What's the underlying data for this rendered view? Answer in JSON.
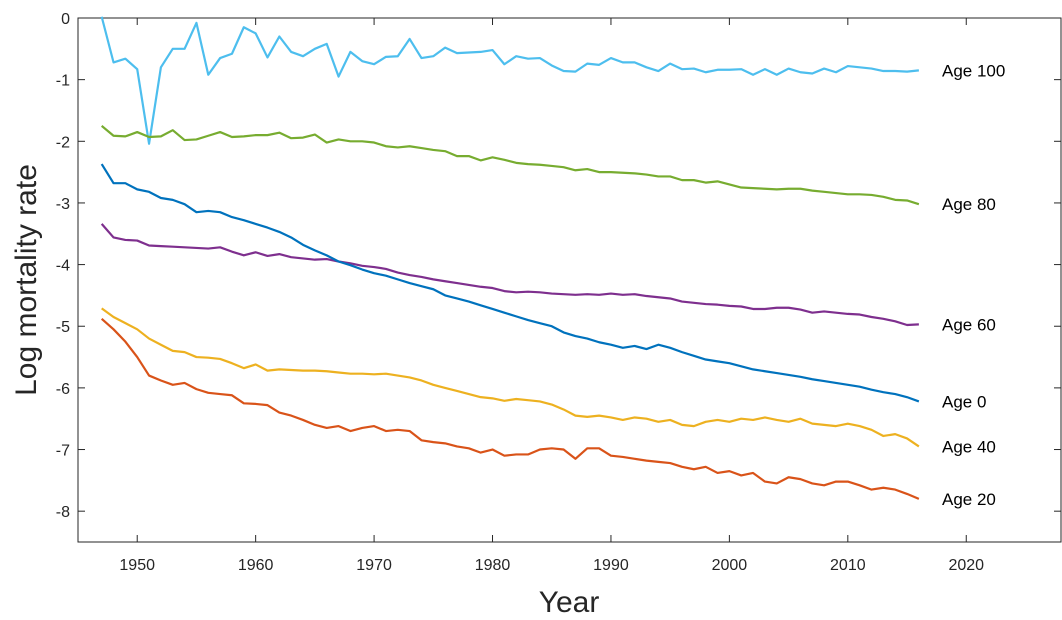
{
  "chart_data": {
    "type": "line",
    "title": "",
    "xlabel": "Year",
    "ylabel": "Log mortality rate",
    "xlim": [
      1945,
      2028
    ],
    "ylim": [
      -8.5,
      0
    ],
    "xticks": [
      1950,
      1960,
      1970,
      1980,
      1990,
      2000,
      2010,
      2020
    ],
    "yticks": [
      0,
      -1,
      -2,
      -3,
      -4,
      -5,
      -6,
      -7,
      -8
    ],
    "grid": false,
    "legend": "direct labels at right end of each line",
    "x_start": 1947,
    "x_end": 2016,
    "series": [
      {
        "name": "Age 100",
        "color": "#4DBEEE",
        "values": [
          0.02,
          -0.72,
          -0.66,
          -0.83,
          -2.04,
          -0.8,
          -0.5,
          -0.5,
          -0.08,
          -0.92,
          -0.65,
          -0.58,
          -0.15,
          -0.25,
          -0.64,
          -0.3,
          -0.55,
          -0.62,
          -0.5,
          -0.42,
          -0.95,
          -0.55,
          -0.7,
          -0.75,
          -0.63,
          -0.62,
          -0.34,
          -0.65,
          -0.62,
          -0.48,
          -0.57,
          -0.56,
          -0.55,
          -0.52,
          -0.75,
          -0.62,
          -0.66,
          -0.65,
          -0.77,
          -0.86,
          -0.87,
          -0.74,
          -0.76,
          -0.65,
          -0.72,
          -0.72,
          -0.8,
          -0.86,
          -0.74,
          -0.83,
          -0.82,
          -0.88,
          -0.84,
          -0.84,
          -0.83,
          -0.92,
          -0.83,
          -0.92,
          -0.82,
          -0.88,
          -0.9,
          -0.82,
          -0.88,
          -0.78,
          -0.8,
          -0.82,
          -0.86,
          -0.86,
          -0.87,
          -0.85
        ]
      },
      {
        "name": "Age 80",
        "color": "#77AC30",
        "values": [
          -1.75,
          -1.91,
          -1.92,
          -1.85,
          -1.93,
          -1.92,
          -1.82,
          -1.98,
          -1.97,
          -1.91,
          -1.85,
          -1.93,
          -1.92,
          -1.9,
          -1.9,
          -1.86,
          -1.95,
          -1.94,
          -1.89,
          -2.02,
          -1.97,
          -2.0,
          -2.0,
          -2.02,
          -2.08,
          -2.1,
          -2.08,
          -2.11,
          -2.14,
          -2.16,
          -2.24,
          -2.24,
          -2.31,
          -2.26,
          -2.3,
          -2.35,
          -2.37,
          -2.38,
          -2.4,
          -2.42,
          -2.47,
          -2.45,
          -2.5,
          -2.5,
          -2.51,
          -2.52,
          -2.54,
          -2.57,
          -2.57,
          -2.63,
          -2.63,
          -2.67,
          -2.65,
          -2.7,
          -2.75,
          -2.76,
          -2.77,
          -2.78,
          -2.77,
          -2.77,
          -2.8,
          -2.82,
          -2.84,
          -2.86,
          -2.86,
          -2.87,
          -2.9,
          -2.95,
          -2.96,
          -3.02
        ]
      },
      {
        "name": "Age 60",
        "color": "#7E2F8E",
        "values": [
          -3.34,
          -3.56,
          -3.6,
          -3.61,
          -3.69,
          -3.7,
          -3.71,
          -3.72,
          -3.73,
          -3.74,
          -3.72,
          -3.79,
          -3.85,
          -3.8,
          -3.86,
          -3.83,
          -3.88,
          -3.9,
          -3.92,
          -3.91,
          -3.95,
          -3.98,
          -4.02,
          -4.04,
          -4.07,
          -4.13,
          -4.17,
          -4.2,
          -4.24,
          -4.27,
          -4.3,
          -4.33,
          -4.36,
          -4.38,
          -4.43,
          -4.45,
          -4.44,
          -4.45,
          -4.47,
          -4.48,
          -4.49,
          -4.48,
          -4.49,
          -4.47,
          -4.49,
          -4.48,
          -4.51,
          -4.53,
          -4.55,
          -4.6,
          -4.62,
          -4.64,
          -4.65,
          -4.67,
          -4.68,
          -4.72,
          -4.72,
          -4.7,
          -4.7,
          -4.73,
          -4.78,
          -4.76,
          -4.78,
          -4.8,
          -4.81,
          -4.85,
          -4.88,
          -4.92,
          -4.98,
          -4.97
        ]
      },
      {
        "name": "Age 0",
        "color": "#0072BD",
        "values": [
          -2.37,
          -2.68,
          -2.68,
          -2.78,
          -2.82,
          -2.92,
          -2.95,
          -3.02,
          -3.15,
          -3.13,
          -3.15,
          -3.23,
          -3.28,
          -3.34,
          -3.4,
          -3.47,
          -3.56,
          -3.68,
          -3.77,
          -3.85,
          -3.95,
          -4.01,
          -4.08,
          -4.14,
          -4.18,
          -4.24,
          -4.3,
          -4.35,
          -4.4,
          -4.5,
          -4.55,
          -4.6,
          -4.66,
          -4.72,
          -4.78,
          -4.84,
          -4.9,
          -4.95,
          -5.0,
          -5.1,
          -5.16,
          -5.2,
          -5.26,
          -5.3,
          -5.35,
          -5.32,
          -5.37,
          -5.3,
          -5.35,
          -5.42,
          -5.48,
          -5.54,
          -5.57,
          -5.6,
          -5.65,
          -5.7,
          -5.73,
          -5.76,
          -5.79,
          -5.82,
          -5.86,
          -5.89,
          -5.92,
          -5.95,
          -5.98,
          -6.03,
          -6.07,
          -6.1,
          -6.15,
          -6.22
        ]
      },
      {
        "name": "Age 40",
        "color": "#EDB120",
        "values": [
          -4.71,
          -4.85,
          -4.95,
          -5.05,
          -5.2,
          -5.3,
          -5.4,
          -5.42,
          -5.5,
          -5.51,
          -5.53,
          -5.6,
          -5.68,
          -5.62,
          -5.72,
          -5.7,
          -5.71,
          -5.72,
          -5.72,
          -5.73,
          -5.75,
          -5.77,
          -5.77,
          -5.78,
          -5.77,
          -5.8,
          -5.83,
          -5.88,
          -5.95,
          -6.0,
          -6.05,
          -6.1,
          -6.15,
          -6.17,
          -6.21,
          -6.18,
          -6.2,
          -6.22,
          -6.27,
          -6.35,
          -6.45,
          -6.47,
          -6.45,
          -6.48,
          -6.52,
          -6.48,
          -6.5,
          -6.55,
          -6.52,
          -6.6,
          -6.62,
          -6.55,
          -6.52,
          -6.55,
          -6.5,
          -6.52,
          -6.48,
          -6.52,
          -6.55,
          -6.5,
          -6.58,
          -6.6,
          -6.62,
          -6.58,
          -6.62,
          -6.68,
          -6.78,
          -6.75,
          -6.82,
          -6.95
        ]
      },
      {
        "name": "Age 20",
        "color": "#D95319",
        "values": [
          -4.88,
          -5.05,
          -5.25,
          -5.5,
          -5.8,
          -5.88,
          -5.95,
          -5.92,
          -6.02,
          -6.08,
          -6.1,
          -6.12,
          -6.25,
          -6.26,
          -6.28,
          -6.4,
          -6.45,
          -6.52,
          -6.6,
          -6.65,
          -6.62,
          -6.7,
          -6.65,
          -6.62,
          -6.7,
          -6.68,
          -6.7,
          -6.85,
          -6.88,
          -6.9,
          -6.95,
          -6.98,
          -7.05,
          -7.0,
          -7.1,
          -7.08,
          -7.08,
          -7.0,
          -6.98,
          -7.0,
          -7.15,
          -6.98,
          -6.98,
          -7.1,
          -7.12,
          -7.15,
          -7.18,
          -7.2,
          -7.22,
          -7.28,
          -7.32,
          -7.28,
          -7.38,
          -7.35,
          -7.42,
          -7.38,
          -7.52,
          -7.55,
          -7.45,
          -7.48,
          -7.55,
          -7.58,
          -7.52,
          -7.52,
          -7.58,
          -7.65,
          -7.62,
          -7.65,
          -7.72,
          -7.8
        ]
      }
    ]
  }
}
